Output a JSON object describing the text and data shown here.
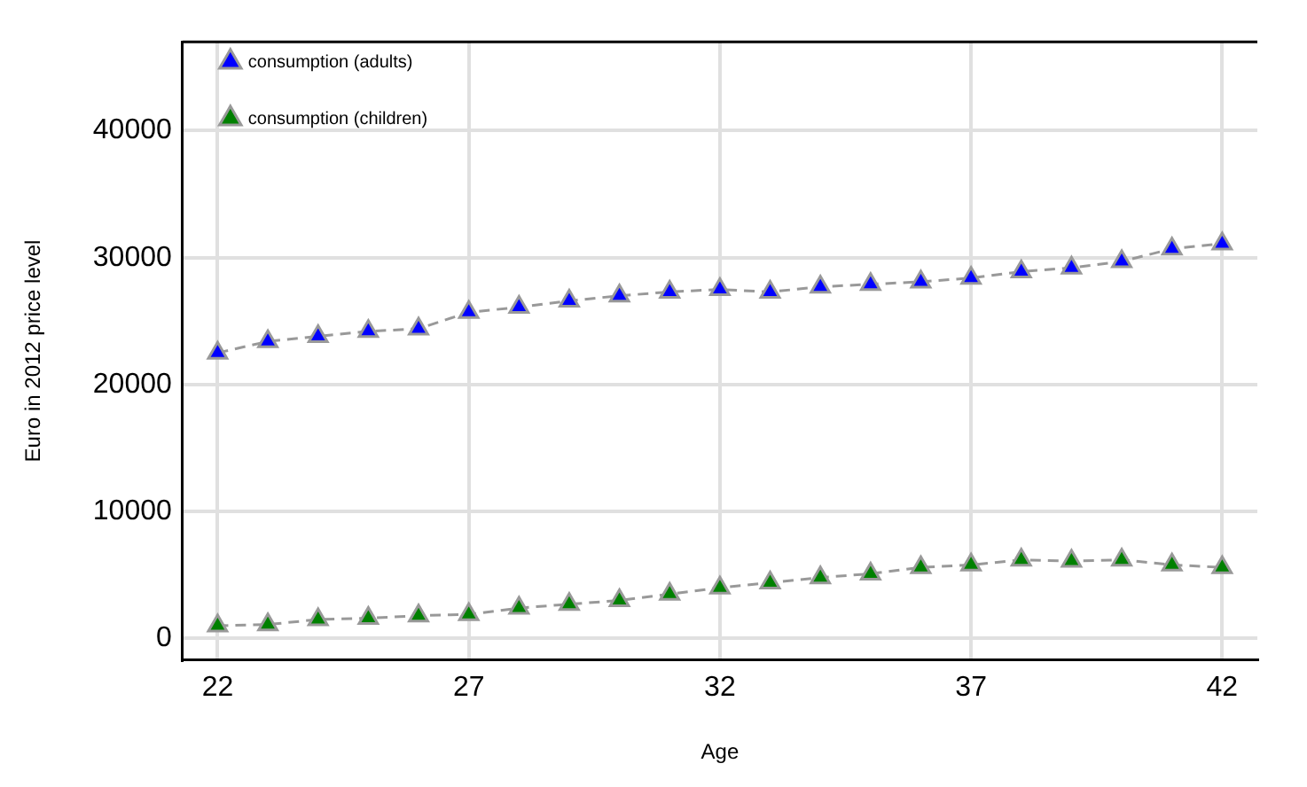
{
  "chart_data": {
    "type": "line",
    "xlabel": "Age",
    "ylabel": "Euro in 2012 price level",
    "x": [
      22,
      23,
      24,
      25,
      26,
      27,
      28,
      29,
      30,
      31,
      32,
      33,
      34,
      35,
      36,
      37,
      38,
      39,
      40,
      41,
      42
    ],
    "series": [
      {
        "name": "consumption (adults)",
        "color": "#0000ff",
        "values": [
          22500,
          23400,
          23800,
          24200,
          24400,
          25700,
          26100,
          26600,
          27000,
          27300,
          27500,
          27300,
          27700,
          27900,
          28100,
          28400,
          28900,
          29200,
          29700,
          30700,
          31100
        ]
      },
      {
        "name": "consumption (children)",
        "color": "#008000",
        "values": [
          1000,
          1100,
          1500,
          1600,
          1800,
          1900,
          2400,
          2700,
          3000,
          3500,
          4000,
          4400,
          4800,
          5100,
          5600,
          5800,
          6200,
          6100,
          6200,
          5800,
          5600
        ]
      }
    ],
    "xlim": [
      21.3,
      42.7
    ],
    "xticks": [
      22,
      27,
      32,
      37,
      42
    ],
    "ylim": [
      -1700,
      47000
    ],
    "yticks": [
      0,
      10000,
      20000,
      30000,
      40000
    ],
    "grid": true,
    "legend": "top left",
    "marker": "triangle",
    "line_style": "dashed"
  }
}
